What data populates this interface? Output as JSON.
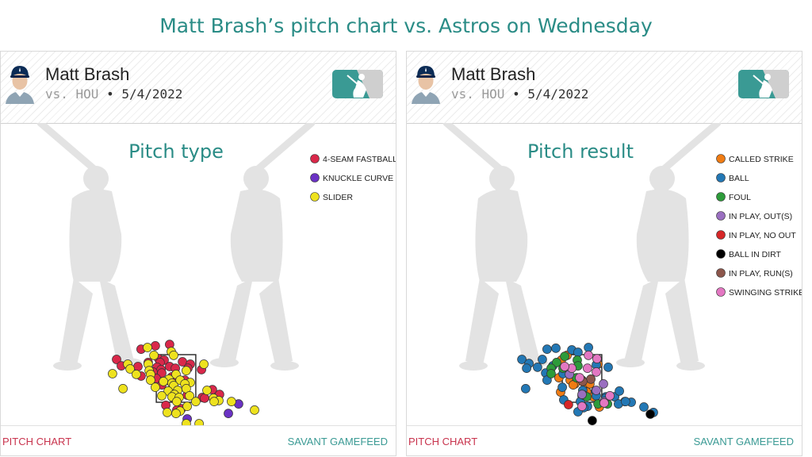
{
  "page": {
    "title": "Matt Brash’s pitch chart vs. Astros on Wednesday"
  },
  "header": {
    "player_name": "Matt Brash",
    "opponent": "vs. HOU",
    "separator": "•",
    "date": "5/4/2022"
  },
  "icons": {
    "avatar": "player-headshot-icon",
    "logo": "mlb-logo-icon"
  },
  "footer": {
    "left_link": "PITCH CHART",
    "right_link": "SAVANT GAMEFEED"
  },
  "colors": {
    "title": "#2a8c86",
    "footer_left": "#c8334d",
    "footer_right": "#3a9a94",
    "silhouette": "#e3e3e3"
  },
  "chart_data": [
    {
      "type": "scatter",
      "title": "Pitch type",
      "legend": [
        {
          "name": "4-SEAM FASTBALL",
          "color": "#d9284a"
        },
        {
          "name": "KNUCKLE CURVE",
          "color": "#6a32c4"
        },
        {
          "name": "SLIDER",
          "color": "#eee21e"
        }
      ],
      "legend_placement": "top-right",
      "strike_zone": {
        "x": [
          -0.83,
          0.83
        ],
        "z": [
          1.5,
          3.5
        ]
      },
      "xlim": [
        -5,
        5
      ],
      "ylim": [
        -0.3,
        4.5
      ],
      "series": [
        {
          "name": "4-SEAM FASTBALL",
          "points": [
            [
              -1.47,
              3.73
            ],
            [
              -0.87,
              3.87
            ],
            [
              -0.27,
              3.93
            ],
            [
              -2.5,
              3.3
            ],
            [
              -0.73,
              3.33
            ],
            [
              -0.5,
              3.27
            ],
            [
              -1.17,
              3.17
            ],
            [
              -0.67,
              3.17
            ],
            [
              0.27,
              3.2
            ],
            [
              0.6,
              3.1
            ],
            [
              -2.3,
              3.03
            ],
            [
              -1.6,
              3.0
            ],
            [
              -0.8,
              2.97
            ],
            [
              -0.27,
              3.0
            ],
            [
              -0.63,
              2.87
            ],
            [
              -0.03,
              2.93
            ],
            [
              0.5,
              2.93
            ],
            [
              1.07,
              2.87
            ],
            [
              -0.97,
              2.77
            ],
            [
              -0.6,
              2.73
            ],
            [
              -1.47,
              2.6
            ],
            [
              -0.17,
              2.57
            ],
            [
              -0.83,
              2.5
            ],
            [
              0.0,
              2.53
            ],
            [
              -0.3,
              2.4
            ],
            [
              0.37,
              2.43
            ],
            [
              -0.6,
              2.23
            ],
            [
              1.53,
              2.03
            ],
            [
              1.83,
              1.83
            ],
            [
              0.47,
              1.8
            ],
            [
              -0.1,
              1.67
            ],
            [
              1.1,
              1.7
            ],
            [
              1.2,
              1.67
            ],
            [
              -0.43,
              1.37
            ],
            [
              0.23,
              1.23
            ],
            [
              0.03,
              1.17
            ]
          ]
        },
        {
          "name": "KNUCKLE CURVE",
          "points": [
            [
              2.63,
              1.43
            ],
            [
              2.2,
              1.03
            ],
            [
              0.47,
              0.8
            ]
          ]
        },
        {
          "name": "SLIDER",
          "points": [
            [
              -1.2,
              3.8
            ],
            [
              -0.2,
              3.63
            ],
            [
              -0.93,
              3.47
            ],
            [
              -0.1,
              3.47
            ],
            [
              -2.03,
              3.1
            ],
            [
              -1.17,
              3.1
            ],
            [
              1.17,
              3.1
            ],
            [
              -1.93,
              2.9
            ],
            [
              -1.13,
              2.83
            ],
            [
              0.43,
              2.83
            ],
            [
              -2.67,
              2.7
            ],
            [
              -1.67,
              2.67
            ],
            [
              -1.07,
              2.67
            ],
            [
              0.0,
              2.67
            ],
            [
              -0.3,
              2.47
            ],
            [
              0.17,
              2.43
            ],
            [
              -1.07,
              2.43
            ],
            [
              -0.53,
              2.37
            ],
            [
              0.6,
              2.33
            ],
            [
              -0.17,
              2.3
            ],
            [
              0.37,
              2.27
            ],
            [
              -0.1,
              2.2
            ],
            [
              -0.87,
              2.13
            ],
            [
              -2.23,
              2.07
            ],
            [
              -0.33,
              1.97
            ],
            [
              0.07,
              2.0
            ],
            [
              0.43,
              2.07
            ],
            [
              1.3,
              2.0
            ],
            [
              1.57,
              1.67
            ],
            [
              -0.07,
              1.83
            ],
            [
              -0.6,
              1.77
            ],
            [
              0.57,
              1.77
            ],
            [
              -0.17,
              1.73
            ],
            [
              0.13,
              1.7
            ],
            [
              1.8,
              1.57
            ],
            [
              0.03,
              1.53
            ],
            [
              0.83,
              1.53
            ],
            [
              1.6,
              1.53
            ],
            [
              2.33,
              1.53
            ],
            [
              0.47,
              1.33
            ],
            [
              3.3,
              1.17
            ],
            [
              0.17,
              1.13
            ],
            [
              -0.37,
              1.07
            ],
            [
              0.0,
              1.03
            ],
            [
              0.43,
              0.6
            ],
            [
              0.97,
              0.6
            ]
          ]
        }
      ]
    },
    {
      "type": "scatter",
      "title": "Pitch result",
      "legend": [
        {
          "name": "CALLED STRIKE",
          "color": "#f07c14"
        },
        {
          "name": "BALL",
          "color": "#2378b5"
        },
        {
          "name": "FOUL",
          "color": "#2d9b3a"
        },
        {
          "name": "IN PLAY, OUT(S)",
          "color": "#9a6fc0"
        },
        {
          "name": "IN PLAY, NO OUT",
          "color": "#d62728"
        },
        {
          "name": "BALL IN DIRT",
          "color": "#000000"
        },
        {
          "name": "IN PLAY, RUN(S)",
          "color": "#8c564b"
        },
        {
          "name": "SWINGING STRIKE",
          "color": "#e377c2"
        }
      ],
      "legend_placement": "top-right",
      "strike_zone": {
        "x": [
          -0.83,
          0.83
        ],
        "z": [
          1.5,
          3.5
        ]
      },
      "xlim": [
        -5,
        5
      ],
      "ylim": [
        -0.3,
        4.5
      ],
      "series": [
        {
          "name": "CALLED STRIKE",
          "points": [
            [
              -0.63,
              3.47
            ],
            [
              -0.87,
              3.27
            ],
            [
              0.67,
              3.1
            ],
            [
              -0.97,
              2.53
            ],
            [
              -0.5,
              2.43
            ],
            [
              -0.3,
              2.27
            ],
            [
              0.13,
              2.3
            ],
            [
              -0.37,
              2.23
            ],
            [
              0.33,
              2.27
            ],
            [
              -0.9,
              1.93
            ],
            [
              0.2,
              1.93
            ],
            [
              0.47,
              1.73
            ],
            [
              0.73,
              1.3
            ]
          ]
        },
        {
          "name": "BALL",
          "points": [
            [
              -1.47,
              3.73
            ],
            [
              -1.1,
              3.77
            ],
            [
              -0.43,
              3.7
            ],
            [
              0.27,
              3.8
            ],
            [
              -0.17,
              3.6
            ],
            [
              -2.53,
              3.3
            ],
            [
              -1.67,
              3.3
            ],
            [
              -2.23,
              3.13
            ],
            [
              -1.87,
              2.97
            ],
            [
              -2.33,
              2.93
            ],
            [
              -1.23,
              3.03
            ],
            [
              0.6,
              3.07
            ],
            [
              1.1,
              2.97
            ],
            [
              -1.53,
              2.73
            ],
            [
              -0.8,
              2.7
            ],
            [
              -1.47,
              2.43
            ],
            [
              -2.37,
              2.07
            ],
            [
              -0.83,
              2.13
            ],
            [
              0.03,
              2.0
            ],
            [
              0.57,
              1.97
            ],
            [
              0.6,
              1.77
            ],
            [
              0.0,
              1.77
            ],
            [
              1.0,
              1.73
            ],
            [
              1.37,
              1.73
            ],
            [
              -0.77,
              1.6
            ],
            [
              1.57,
              1.97
            ],
            [
              1.8,
              1.53
            ],
            [
              1.53,
              1.43
            ],
            [
              2.07,
              1.5
            ],
            [
              1.83,
              1.53
            ],
            [
              1.0,
              1.67
            ],
            [
              -0.07,
              1.53
            ],
            [
              0.23,
              1.33
            ],
            [
              0.07,
              1.27
            ],
            [
              2.6,
              1.3
            ],
            [
              3.0,
              1.07
            ],
            [
              -0.17,
              1.1
            ]
          ]
        },
        {
          "name": "FOUL",
          "points": [
            [
              -0.73,
              3.43
            ],
            [
              -0.2,
              3.27
            ],
            [
              -1.07,
              3.17
            ],
            [
              -0.17,
              3.03
            ],
            [
              -0.8,
              2.93
            ],
            [
              -1.3,
              2.93
            ],
            [
              -1.3,
              2.7
            ],
            [
              -0.23,
              2.53
            ],
            [
              0.07,
              1.8
            ],
            [
              0.2,
              1.73
            ],
            [
              0.67,
              1.43
            ],
            [
              1.07,
              1.43
            ]
          ]
        },
        {
          "name": "IN PLAY, OUT(S)",
          "points": [
            [
              -0.53,
              2.67
            ],
            [
              0.6,
              2.0
            ],
            [
              0.9,
              2.27
            ],
            [
              0.0,
              1.83
            ],
            [
              0.93,
              1.53
            ]
          ]
        },
        {
          "name": "IN PLAY, NO OUT",
          "points": [
            [
              -0.57,
              1.4
            ]
          ]
        },
        {
          "name": "BALL IN DIRT",
          "points": [
            [
              0.43,
              0.73
            ],
            [
              0.47,
              0.17
            ],
            [
              0.93,
              0.13
            ],
            [
              2.87,
              1.0
            ]
          ]
        },
        {
          "name": "IN PLAY, RUN(S)",
          "points": [
            [
              0.0,
              2.43
            ],
            [
              0.37,
              2.47
            ],
            [
              0.03,
              2.37
            ]
          ]
        },
        {
          "name": "SWINGING STRIKE",
          "points": [
            [
              0.27,
              3.47
            ],
            [
              0.63,
              3.33
            ],
            [
              -0.43,
              2.93
            ],
            [
              0.23,
              2.93
            ],
            [
              -0.73,
              3.0
            ],
            [
              -0.1,
              2.53
            ],
            [
              0.6,
              2.77
            ],
            [
              1.17,
              1.77
            ],
            [
              0.93,
              1.47
            ],
            [
              0.0,
              1.33
            ]
          ]
        }
      ]
    }
  ]
}
